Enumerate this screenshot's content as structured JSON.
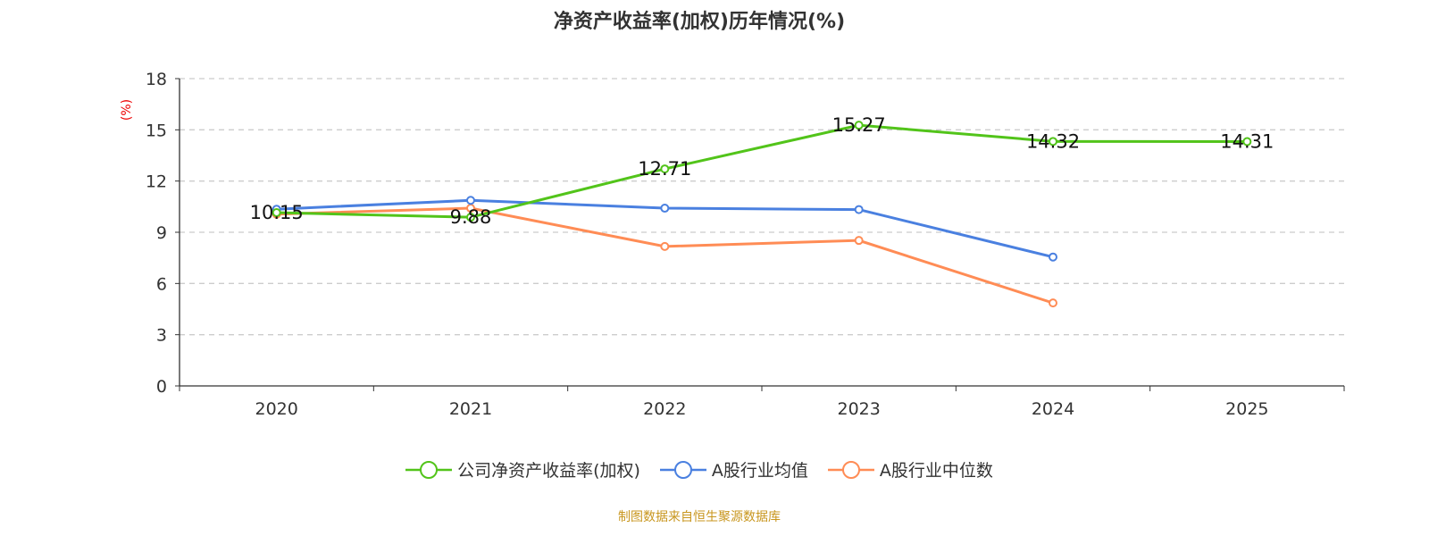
{
  "title": "净资产收益率(加权)历年情况(%)",
  "source": "制图数据来自恒生聚源数据库",
  "chart_data": {
    "type": "line",
    "title": "净资产收益率(加权)历年情况(%)",
    "ylabel": "(%)",
    "categories": [
      "2020",
      "2021",
      "2022",
      "2023",
      "2024",
      "2025"
    ],
    "ylim": [
      0,
      18
    ],
    "yticks": [
      0,
      3,
      6,
      9,
      12,
      15,
      18
    ],
    "grid": true,
    "legend_position": "bottom",
    "series": [
      {
        "name": "公司净资产收益率(加权)",
        "color": "#52c41a",
        "values": [
          10.15,
          9.88,
          12.71,
          15.27,
          14.32,
          14.31
        ],
        "labels": [
          "10.15",
          "9.88",
          "12.71",
          "15.27",
          "14.32",
          "14.31"
        ]
      },
      {
        "name": "A股行业均值",
        "color": "#4a80e0",
        "values": [
          10.35,
          10.87,
          10.41,
          10.33,
          7.55,
          null
        ]
      },
      {
        "name": "A股行业中位数",
        "color": "#ff8c55",
        "values": [
          10.06,
          10.41,
          8.17,
          8.52,
          4.86,
          null
        ]
      }
    ]
  }
}
